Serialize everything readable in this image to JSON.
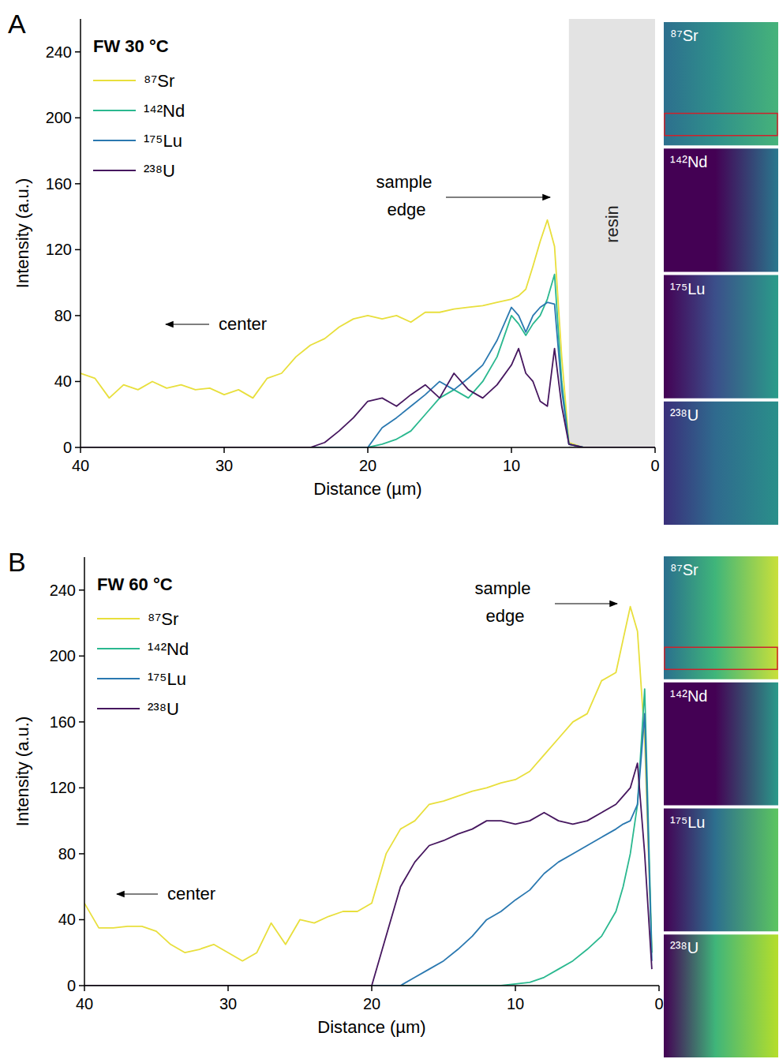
{
  "chart_data": [
    {
      "type": "line",
      "panel": "A",
      "title": "FW 30 °C",
      "x_label": "Distance (µm)",
      "y_label": "Intensity (a.u.)",
      "xlim": [
        40,
        0
      ],
      "ylim": [
        0,
        260
      ],
      "xticks": [
        40,
        30,
        20,
        10,
        0
      ],
      "yticks": [
        0,
        40,
        80,
        120,
        160,
        200,
        240
      ],
      "legend": "upper left",
      "annotations": [
        "sample edge",
        "center"
      ],
      "regions": [
        {
          "label": "resin",
          "from": 6,
          "to": 0
        }
      ],
      "images": [
        "⁸⁷Sr",
        "¹⁴²Nd",
        "¹⁷⁵Lu",
        "²³⁸U"
      ],
      "x": [
        40,
        39,
        38,
        37,
        36,
        35,
        34,
        33,
        32,
        31,
        30,
        29,
        28,
        27,
        26,
        25,
        24,
        23,
        22,
        21,
        20,
        19,
        18,
        17,
        16,
        15,
        14,
        13,
        12,
        11,
        10,
        9.5,
        9,
        8.5,
        8,
        7.5,
        7,
        6.5,
        6,
        5,
        0
      ],
      "series": [
        {
          "name": "⁸⁷Sr",
          "color": "#e8df3c",
          "values": [
            45,
            42,
            30,
            38,
            35,
            40,
            36,
            38,
            35,
            36,
            32,
            35,
            30,
            42,
            45,
            55,
            62,
            66,
            73,
            78,
            80,
            78,
            80,
            76,
            82,
            82,
            84,
            85,
            86,
            88,
            90,
            92,
            96,
            110,
            125,
            138,
            122,
            55,
            3,
            0,
            0
          ]
        },
        {
          "name": "¹⁴²Nd",
          "color": "#2ab88f",
          "values": [
            0,
            0,
            0,
            0,
            0,
            0,
            0,
            0,
            0,
            0,
            0,
            0,
            0,
            0,
            0,
            0,
            0,
            0,
            0,
            0,
            0,
            2,
            5,
            10,
            20,
            30,
            35,
            30,
            40,
            55,
            80,
            75,
            68,
            75,
            80,
            90,
            105,
            40,
            2,
            0,
            0
          ]
        },
        {
          "name": "¹⁷⁵Lu",
          "color": "#2a78b0",
          "values": [
            0,
            0,
            0,
            0,
            0,
            0,
            0,
            0,
            0,
            0,
            0,
            0,
            0,
            0,
            0,
            0,
            0,
            0,
            0,
            0,
            0,
            12,
            18,
            25,
            32,
            40,
            35,
            42,
            50,
            65,
            85,
            80,
            70,
            80,
            85,
            88,
            87,
            35,
            2,
            0,
            0
          ]
        },
        {
          "name": "²³⁸U",
          "color": "#46175f",
          "values": [
            0,
            0,
            0,
            0,
            0,
            0,
            0,
            0,
            0,
            0,
            0,
            0,
            0,
            0,
            0,
            0,
            0,
            3,
            10,
            18,
            28,
            30,
            25,
            32,
            38,
            30,
            45,
            35,
            30,
            38,
            50,
            60,
            45,
            40,
            28,
            25,
            60,
            25,
            2,
            0,
            0
          ]
        }
      ]
    },
    {
      "type": "line",
      "panel": "B",
      "title": "FW 60 °C",
      "x_label": "Distance (µm)",
      "y_label": "Intensity (a.u.)",
      "xlim": [
        40,
        0
      ],
      "ylim": [
        0,
        260
      ],
      "xticks": [
        40,
        30,
        20,
        10,
        0
      ],
      "yticks": [
        0,
        40,
        80,
        120,
        160,
        200,
        240
      ],
      "legend": "upper left",
      "annotations": [
        "sample edge",
        "center"
      ],
      "regions": [],
      "images": [
        "⁸⁷Sr",
        "¹⁴²Nd",
        "¹⁷⁵Lu",
        "²³⁸U"
      ],
      "x": [
        40,
        39,
        38,
        37,
        36,
        35,
        34,
        33,
        32,
        31,
        30,
        29,
        28,
        27,
        26,
        25,
        24,
        23,
        22,
        21,
        20,
        19,
        18,
        17,
        16,
        15,
        14,
        13,
        12,
        11,
        10,
        9,
        8,
        7,
        6,
        5,
        4,
        3,
        2.5,
        2,
        1.5,
        1,
        0.5
      ],
      "series": [
        {
          "name": "⁸⁷Sr",
          "color": "#e8df3c",
          "values": [
            50,
            35,
            35,
            36,
            36,
            33,
            25,
            20,
            22,
            25,
            20,
            15,
            20,
            38,
            25,
            40,
            38,
            42,
            45,
            45,
            50,
            80,
            95,
            100,
            110,
            112,
            115,
            118,
            120,
            123,
            125,
            130,
            140,
            150,
            160,
            165,
            185,
            190,
            210,
            230,
            215,
            150,
            20
          ]
        },
        {
          "name": "¹⁴²Nd",
          "color": "#2ab88f",
          "values": [
            0,
            0,
            0,
            0,
            0,
            0,
            0,
            0,
            0,
            0,
            0,
            0,
            0,
            0,
            0,
            0,
            0,
            0,
            0,
            0,
            0,
            0,
            0,
            0,
            0,
            0,
            0,
            0,
            0,
            0,
            1,
            2,
            5,
            10,
            15,
            22,
            30,
            45,
            60,
            80,
            110,
            180,
            20
          ]
        },
        {
          "name": "¹⁷⁵Lu",
          "color": "#2a78b0",
          "values": [
            0,
            0,
            0,
            0,
            0,
            0,
            0,
            0,
            0,
            0,
            0,
            0,
            0,
            0,
            0,
            0,
            0,
            0,
            0,
            0,
            0,
            0,
            0,
            5,
            10,
            15,
            22,
            30,
            40,
            45,
            52,
            58,
            68,
            75,
            80,
            85,
            90,
            95,
            98,
            100,
            110,
            165,
            15
          ]
        },
        {
          "name": "²³⁸U",
          "color": "#46175f",
          "values": [
            0,
            0,
            0,
            0,
            0,
            0,
            0,
            0,
            0,
            0,
            0,
            0,
            0,
            0,
            0,
            0,
            0,
            0,
            0,
            0,
            0,
            30,
            60,
            75,
            85,
            88,
            92,
            95,
            100,
            100,
            98,
            100,
            105,
            100,
            98,
            100,
            105,
            110,
            115,
            120,
            135,
            80,
            10
          ]
        }
      ]
    }
  ]
}
